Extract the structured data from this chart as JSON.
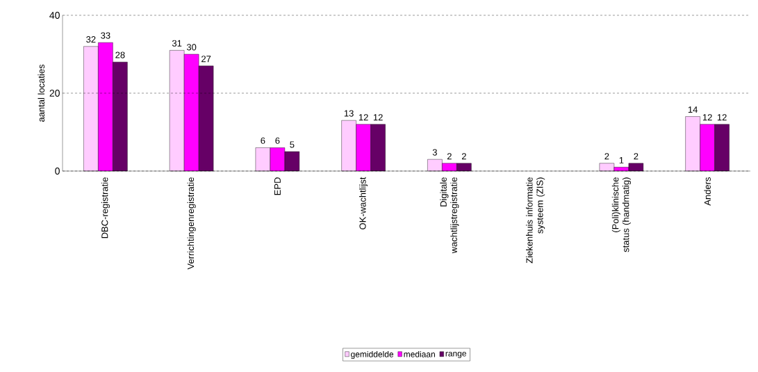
{
  "chart_data": {
    "type": "bar",
    "ylabel": "aantal locaties",
    "categories": [
      "DBC-registratie",
      "Verrichtingenregistratie",
      "EPD",
      "OK-wachtlijst",
      "Digitale wachtlijstregistratie",
      "Ziekenhuis informatie systeem (ZIS)",
      "(Poli)klinische status (handmatig)",
      "Anders"
    ],
    "series": [
      {
        "name": "gemiddelde",
        "color": "#ffccff",
        "values": [
          32,
          31,
          6,
          13,
          3,
          null,
          2,
          14
        ],
        "value_labels": [
          "32",
          "31",
          "6",
          "13",
          "3",
          null,
          "2",
          "14"
        ]
      },
      {
        "name": "mediaan",
        "color": "#ff00ff",
        "values": [
          33,
          30,
          6,
          12,
          2,
          null,
          1,
          12
        ],
        "value_labels": [
          "33",
          "30",
          "6",
          "12",
          "2",
          null,
          "1",
          "12"
        ]
      },
      {
        "name": "range",
        "color": "#660066",
        "values": [
          28,
          27,
          5,
          12,
          2,
          null,
          2,
          12
        ],
        "value_labels": [
          "28",
          "27",
          "5",
          "12",
          "2",
          null,
          "2",
          "12"
        ]
      }
    ],
    "ylim": [
      0,
      40
    ],
    "yticks": [
      0,
      20,
      40
    ],
    "grid": "y",
    "legend": "bottom"
  }
}
